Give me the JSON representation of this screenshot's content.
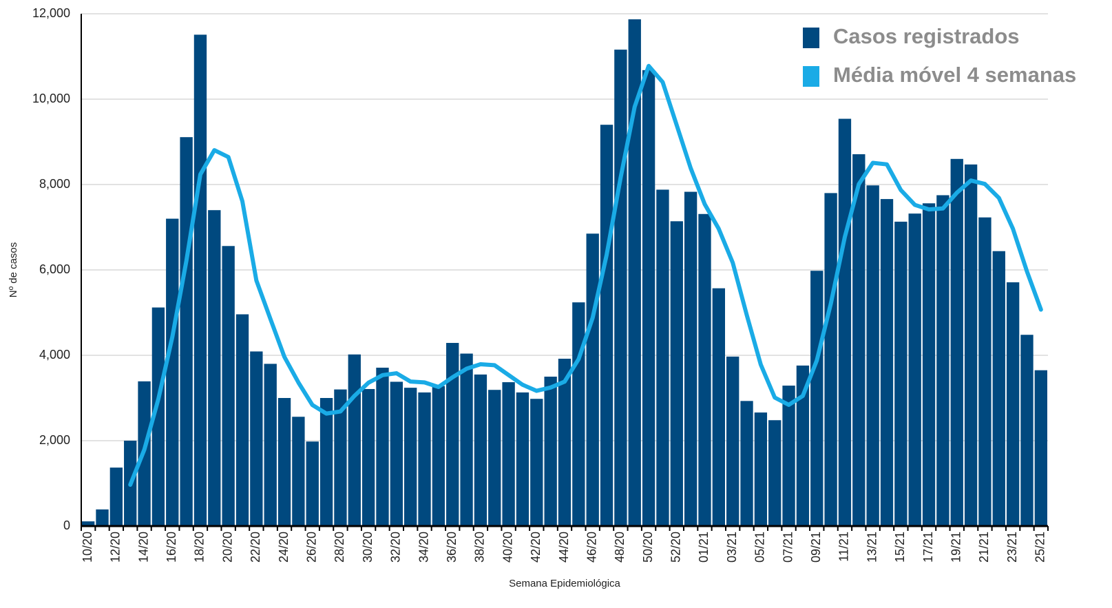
{
  "chart_data": {
    "type": "bar_line",
    "y_axis_label": "Nº de casos",
    "x_axis_label": "Semana Epidemiológica",
    "categories": [
      "10/20",
      null,
      "12/20",
      null,
      "14/20",
      null,
      "16/20",
      null,
      "18/20",
      null,
      "20/20",
      null,
      "22/20",
      null,
      "24/20",
      null,
      "26/20",
      null,
      "28/20",
      null,
      "30/20",
      null,
      "32/20",
      null,
      "34/20",
      null,
      "36/20",
      null,
      "38/20",
      null,
      "40/20",
      null,
      "42/20",
      null,
      "44/20",
      null,
      "46/20",
      null,
      "48/20",
      null,
      "50/20",
      null,
      "52/20",
      null,
      "01/21",
      null,
      "03/21",
      null,
      "05/21",
      null,
      "07/21",
      null,
      "09/21",
      null,
      "11/21",
      null,
      "13/21",
      null,
      "15/21",
      null,
      "17/21",
      null,
      "19/21",
      null,
      "21/21",
      null,
      "23/21",
      null,
      "25/21"
    ],
    "series": [
      {
        "name": "Casos registrados",
        "type": "bar",
        "color": "#00497f",
        "values": [
          110,
          390,
          1370,
          2000,
          3390,
          5120,
          7200,
          9110,
          11510,
          7400,
          6560,
          4960,
          4090,
          3800,
          3000,
          2560,
          1980,
          3000,
          3200,
          4020,
          3210,
          3710,
          3380,
          3240,
          3130,
          3280,
          4290,
          4040,
          3550,
          3190,
          3370,
          3130,
          2980,
          3500,
          3920,
          5240,
          6850,
          9400,
          11160,
          11870,
          10680,
          7880,
          7140,
          7830,
          7310,
          5570,
          3970,
          2930,
          2660,
          2480,
          3290,
          3760,
          5980,
          7800,
          9540,
          8710,
          7980,
          7660,
          7130,
          7320,
          7560,
          7750,
          8600,
          8470,
          7230,
          6440,
          5710,
          4480,
          3650
        ]
      },
      {
        "name": "Média móvel 4 semanas",
        "type": "line",
        "color": "#1aabe6",
        "values": [
          null,
          null,
          null,
          968,
          1788,
          2970,
          4428,
          6205,
          8235,
          8805,
          8645,
          7608,
          5753,
          4853,
          3963,
          3363,
          2835,
          2635,
          2685,
          3050,
          3358,
          3535,
          3580,
          3385,
          3365,
          3258,
          3485,
          3685,
          3790,
          3768,
          3538,
          3310,
          3168,
          3245,
          3383,
          3910,
          4878,
          6353,
          8163,
          9820,
          10778,
          10398,
          9393,
          8383,
          7540,
          6963,
          6170,
          4945,
          3783,
          3010,
          2840,
          3048,
          3878,
          5208,
          6770,
          8008,
          8508,
          8473,
          7870,
          7523,
          7418,
          7440,
          7808,
          8095,
          8013,
          7685,
          6963,
          5965,
          5070
        ]
      }
    ],
    "ylim": [
      0,
      12000
    ],
    "yticks": [
      0,
      {
        "value": 2000,
        "label": "2,000"
      },
      {
        "value": 4000,
        "label": "4,000"
      },
      {
        "value": 6000,
        "label": "6,000"
      },
      {
        "value": 8000,
        "label": "8,000"
      },
      {
        "value": 10000,
        "label": "10,000"
      },
      {
        "value": 12000,
        "label": "12,000"
      }
    ],
    "grid": true,
    "legend": "top-right"
  }
}
